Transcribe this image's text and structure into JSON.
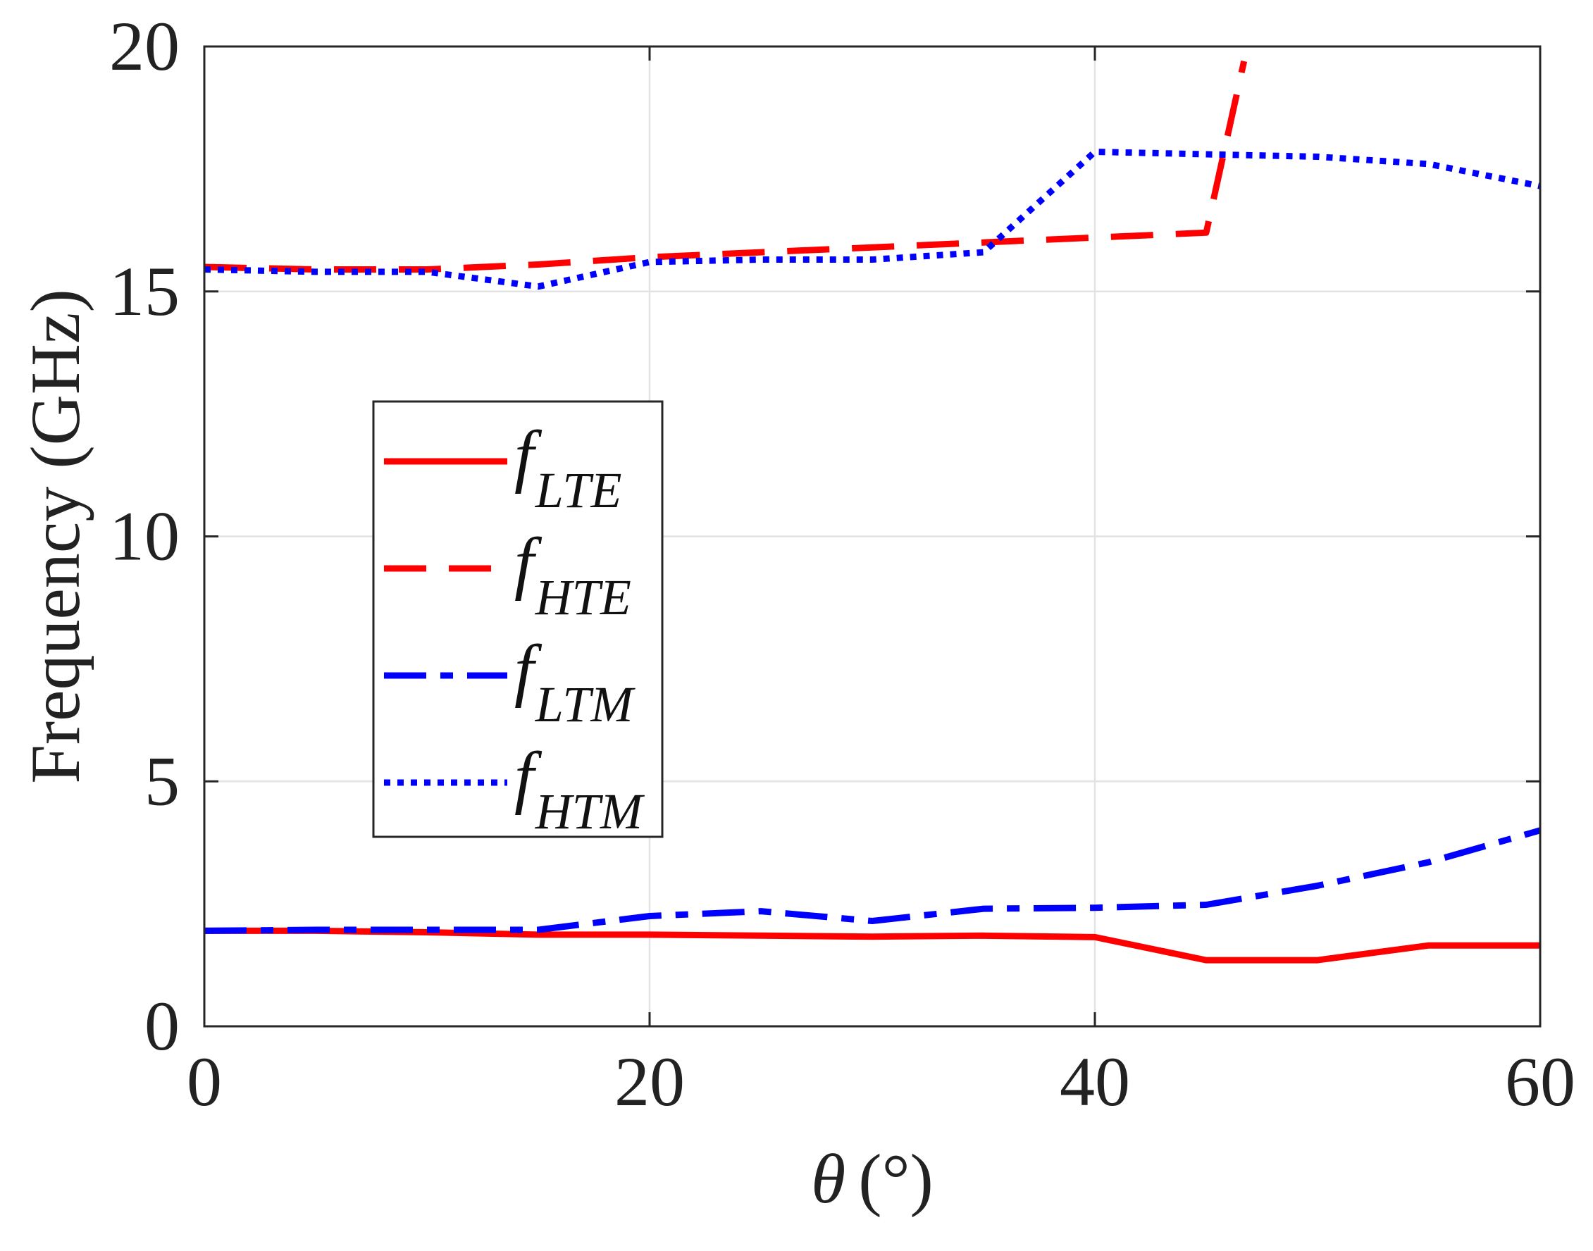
{
  "chart_data": {
    "type": "line",
    "title": "",
    "xlabel_symbol": "θ",
    "xlabel_unit": "(°)",
    "ylabel": "Frequency (GHz)",
    "xlim": [
      0,
      60
    ],
    "ylim": [
      0,
      20
    ],
    "xticks": [
      0,
      20,
      40,
      60
    ],
    "yticks": [
      0,
      5,
      10,
      15,
      20
    ],
    "grid": true,
    "legend_position": "middle-left",
    "series": [
      {
        "name": "f_LTE",
        "label_main": "f",
        "label_sub": "LTE",
        "color": "#ff0000",
        "style": "solid",
        "x": [
          0,
          5,
          10,
          15,
          20,
          25,
          30,
          35,
          40,
          45,
          50,
          55,
          60
        ],
        "y": [
          1.95,
          1.95,
          1.92,
          1.87,
          1.87,
          1.85,
          1.83,
          1.85,
          1.82,
          1.35,
          1.35,
          1.65,
          1.65
        ]
      },
      {
        "name": "f_HTE",
        "label_main": "f",
        "label_sub": "HTE",
        "color": "#ff0000",
        "style": "dashed",
        "x": [
          0,
          5,
          10,
          15,
          20,
          25,
          30,
          35,
          40,
          45,
          46.7
        ],
        "y": [
          15.5,
          15.45,
          15.45,
          15.55,
          15.7,
          15.8,
          15.9,
          16.0,
          16.1,
          16.2,
          19.7
        ]
      },
      {
        "name": "f_LTM",
        "label_main": "f",
        "label_sub": "LTM",
        "color": "#0000ff",
        "style": "dashdot",
        "x": [
          0,
          5,
          10,
          15,
          20,
          25,
          30,
          35,
          40,
          45,
          50,
          55,
          60
        ],
        "y": [
          1.95,
          1.97,
          1.97,
          1.97,
          2.25,
          2.35,
          2.15,
          2.4,
          2.42,
          2.48,
          2.87,
          3.35,
          4.0
        ]
      },
      {
        "name": "f_HTM",
        "label_main": "f",
        "label_sub": "HTM",
        "color": "#0000ff",
        "style": "dotted",
        "x": [
          0,
          5,
          10,
          15,
          20,
          25,
          30,
          35,
          40,
          45,
          50,
          55,
          60
        ],
        "y": [
          15.45,
          15.4,
          15.4,
          15.1,
          15.6,
          15.65,
          15.65,
          15.8,
          17.85,
          17.8,
          17.75,
          17.6,
          17.15
        ]
      }
    ]
  }
}
